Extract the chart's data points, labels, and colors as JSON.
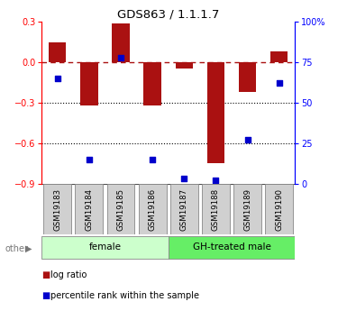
{
  "title": "GDS863 / 1.1.1.7",
  "samples": [
    "GSM19183",
    "GSM19184",
    "GSM19185",
    "GSM19186",
    "GSM19187",
    "GSM19188",
    "GSM19189",
    "GSM19190"
  ],
  "log_ratios": [
    0.15,
    -0.32,
    0.29,
    -0.32,
    -0.05,
    -0.75,
    -0.22,
    0.08
  ],
  "percentile_ranks": [
    65,
    15,
    78,
    15,
    3,
    2,
    27,
    62
  ],
  "ylim_left": [
    -0.9,
    0.3
  ],
  "ylim_right": [
    0,
    100
  ],
  "bar_color": "#aa1111",
  "dot_color": "#0000cc",
  "dashed_line_color": "#aa1111",
  "group1_label": "female",
  "group2_label": "GH-treated male",
  "group1_color": "#ccffcc",
  "group2_color": "#66ee66",
  "legend_log_ratio": "log ratio",
  "legend_percentile": "percentile rank within the sample",
  "other_label": "other",
  "yticks_left": [
    0.3,
    0.0,
    -0.3,
    -0.6,
    -0.9
  ],
  "yticks_right": [
    100,
    75,
    50,
    25,
    0
  ],
  "ytick_right_labels": [
    "100%",
    "75",
    "50",
    "25",
    "0"
  ]
}
